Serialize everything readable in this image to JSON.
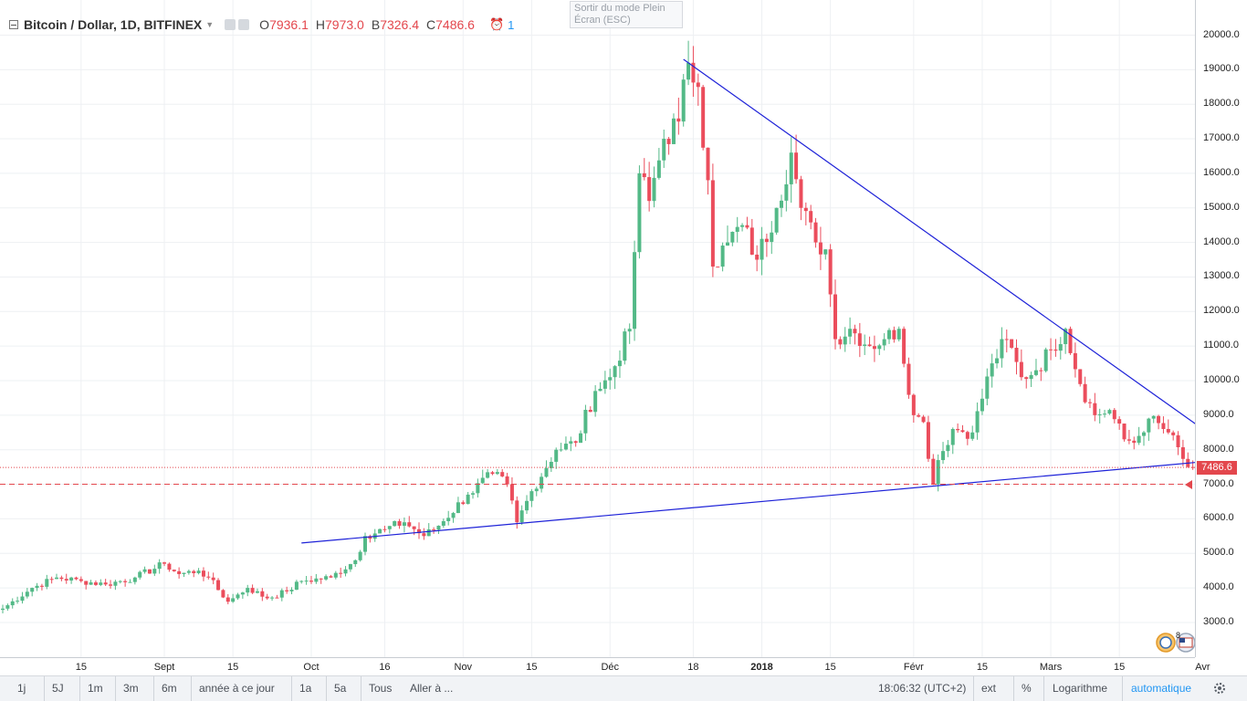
{
  "legend": {
    "symbol": "Bitcoin / Dollar, 1D, BITFINEX",
    "o_label": "O",
    "o_value": "7936.1",
    "h_label": "H",
    "h_value": "7973.0",
    "b_label": "B",
    "b_value": "7326.4",
    "c_label": "C",
    "c_value": "7486.6",
    "alert_count": "1"
  },
  "tooltip": {
    "line1": "Sortir du mode Plein",
    "line2": "Écran (ESC)"
  },
  "current_price_label": "7486.6",
  "price_ticks": [
    "20000.0",
    "19000.0",
    "18000.0",
    "17000.0",
    "16000.0",
    "15000.0",
    "14000.0",
    "13000.0",
    "12000.0",
    "11000.0",
    "10000.0",
    "9000.0",
    "8000.0",
    "7000.0",
    "6000.0",
    "5000.0",
    "4000.0",
    "3000.0"
  ],
  "time_labels": [
    {
      "text": "15"
    },
    {
      "text": "Sept"
    },
    {
      "text": "15"
    },
    {
      "text": "Oct"
    },
    {
      "text": "16"
    },
    {
      "text": "Nov"
    },
    {
      "text": "15"
    },
    {
      "text": "Déc"
    },
    {
      "text": "18"
    },
    {
      "text": "2018",
      "bold": true
    },
    {
      "text": "15"
    },
    {
      "text": "Févr"
    },
    {
      "text": "15"
    },
    {
      "text": "Mars"
    },
    {
      "text": "15"
    },
    {
      "text": "Avr"
    }
  ],
  "badge_count": "8",
  "bottom_bar": {
    "ranges": [
      "1j",
      "5J",
      "1m",
      "3m",
      "6m",
      "année à ce jour",
      "1a",
      "5a",
      "Tous"
    ],
    "goto": "Aller à ...",
    "clock": "18:06:32 (UTC+2)",
    "ext": "ext",
    "percent": "%",
    "log": "Logarithme",
    "auto": "automatique"
  },
  "colors": {
    "up": "#53b987",
    "down": "#eb4d5c",
    "trend": "#1e22d8",
    "price_line": "#e3474d",
    "accent": "#2196f3"
  },
  "chart_data": {
    "type": "candlestick",
    "title": "Bitcoin / Dollar, 1D, BITFINEX",
    "ylim": [
      2200,
      21000
    ],
    "last_close": 7486.6,
    "horizontal_levels": [
      7486.6,
      7000
    ],
    "trendlines": [
      {
        "name": "resistance",
        "from": {
          "date": "2017-12-16",
          "price": 19300
        },
        "to": {
          "date": "2018-04-01",
          "price": 8600
        }
      },
      {
        "name": "support",
        "from": {
          "date": "2017-09-29",
          "price": 5300
        },
        "to": {
          "date": "2018-04-01",
          "price": 7650
        }
      }
    ],
    "anchors": [
      [
        "2017-07-30",
        3400
      ],
      [
        "2017-08-05",
        4000
      ],
      [
        "2017-08-10",
        4300
      ],
      [
        "2017-08-15",
        4200
      ],
      [
        "2017-08-20",
        4100
      ],
      [
        "2017-08-26",
        4300
      ],
      [
        "2017-09-01",
        4700
      ],
      [
        "2017-09-04",
        4400
      ],
      [
        "2017-09-08",
        4500
      ],
      [
        "2017-09-10",
        4300
      ],
      [
        "2017-09-14",
        3600
      ],
      [
        "2017-09-15",
        3700
      ],
      [
        "2017-09-18",
        4000
      ],
      [
        "2017-09-22",
        3700
      ],
      [
        "2017-09-26",
        3900
      ],
      [
        "2017-09-29",
        4200
      ],
      [
        "2017-10-05",
        4300
      ],
      [
        "2017-10-10",
        4800
      ],
      [
        "2017-10-12",
        5500
      ],
      [
        "2017-10-16",
        5700
      ],
      [
        "2017-10-20",
        5900
      ],
      [
        "2017-10-24",
        5500
      ],
      [
        "2017-10-27",
        5800
      ],
      [
        "2017-11-02",
        6700
      ],
      [
        "2017-11-07",
        7300
      ],
      [
        "2017-11-10",
        7000
      ],
      [
        "2017-11-12",
        5900
      ],
      [
        "2017-11-15",
        6800
      ],
      [
        "2017-11-20",
        8000
      ],
      [
        "2017-11-24",
        8200
      ],
      [
        "2017-11-28",
        9700
      ],
      [
        "2017-12-01",
        10100
      ],
      [
        "2017-12-05",
        11500
      ],
      [
        "2017-12-07",
        16000
      ],
      [
        "2017-12-09",
        15200
      ],
      [
        "2017-12-12",
        17000
      ],
      [
        "2017-12-15",
        17500
      ],
      [
        "2017-12-17",
        19200
      ],
      [
        "2017-12-19",
        18500
      ],
      [
        "2017-12-21",
        15800
      ],
      [
        "2017-12-22",
        13300
      ],
      [
        "2017-12-25",
        14000
      ],
      [
        "2017-12-28",
        14500
      ],
      [
        "2017-12-31",
        13500
      ],
      [
        "2018-01-04",
        15000
      ],
      [
        "2018-01-07",
        16600
      ],
      [
        "2018-01-09",
        15000
      ],
      [
        "2018-01-12",
        14000
      ],
      [
        "2018-01-14",
        13800
      ],
      [
        "2018-01-16",
        11200
      ],
      [
        "2018-01-19",
        11500
      ],
      [
        "2018-01-23",
        11000
      ],
      [
        "2018-01-26",
        11200
      ],
      [
        "2018-01-29",
        11500
      ],
      [
        "2018-02-01",
        9000
      ],
      [
        "2018-02-03",
        8800
      ],
      [
        "2018-02-05",
        7000
      ],
      [
        "2018-02-06",
        7700
      ],
      [
        "2018-02-09",
        8600
      ],
      [
        "2018-02-13",
        8500
      ],
      [
        "2018-02-17",
        10500
      ],
      [
        "2018-02-20",
        11200
      ],
      [
        "2018-02-23",
        10100
      ],
      [
        "2018-02-26",
        10300
      ],
      [
        "2018-03-01",
        10900
      ],
      [
        "2018-03-04",
        11500
      ],
      [
        "2018-03-07",
        9900
      ],
      [
        "2018-03-10",
        9000
      ],
      [
        "2018-03-13",
        9150
      ],
      [
        "2018-03-16",
        8300
      ],
      [
        "2018-03-18",
        8200
      ],
      [
        "2018-03-21",
        8900
      ],
      [
        "2018-03-25",
        8500
      ],
      [
        "2018-03-29",
        7500
      ],
      [
        "2018-03-30",
        7486.6
      ]
    ]
  }
}
